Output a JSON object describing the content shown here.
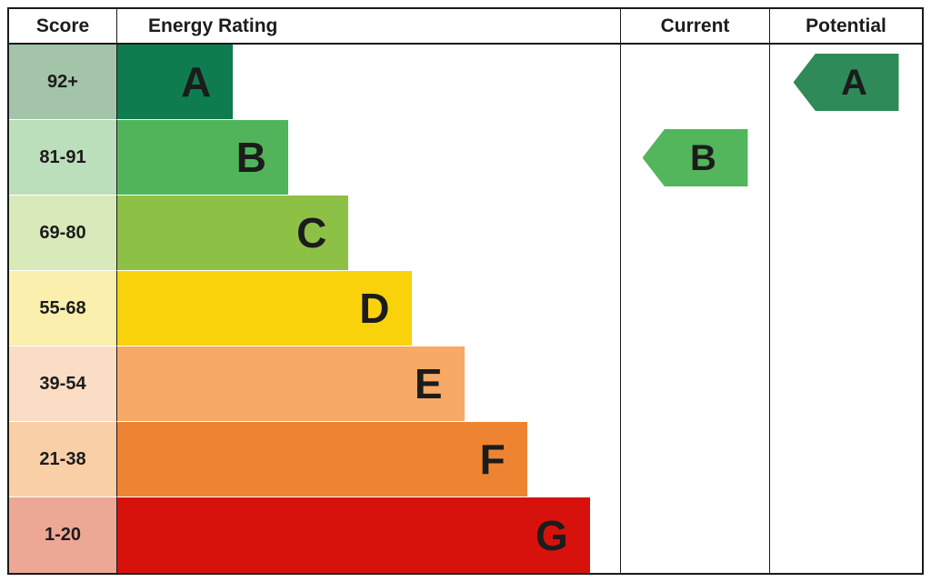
{
  "headers": {
    "score": "Score",
    "rating": "Energy Rating",
    "current": "Current",
    "potential": "Potential"
  },
  "colors": {
    "border": "#1a1a1a",
    "text": "#1c1c1c",
    "background": "#ffffff"
  },
  "chart_data": {
    "type": "bar",
    "title": "Energy Rating",
    "categories": [
      "A",
      "B",
      "C",
      "D",
      "E",
      "F",
      "G"
    ],
    "score_ranges": [
      "92+",
      "81-91",
      "69-80",
      "55-68",
      "39-54",
      "21-38",
      "1-20"
    ],
    "bar_lengths_pct": [
      23,
      34,
      46,
      58.5,
      69,
      81.5,
      94
    ],
    "bands": [
      {
        "letter": "A",
        "score_range": "92+",
        "bar_pct": 23,
        "band_color": "#0e7c4f",
        "score_tint": "#a4c4a9"
      },
      {
        "letter": "B",
        "score_range": "81-91",
        "bar_pct": 34,
        "band_color": "#51b45b",
        "score_tint": "#bcdfbb"
      },
      {
        "letter": "C",
        "score_range": "69-80",
        "bar_pct": 46,
        "band_color": "#8cc145",
        "score_tint": "#d8e9ba"
      },
      {
        "letter": "D",
        "score_range": "55-68",
        "bar_pct": 58.5,
        "band_color": "#fad20c",
        "score_tint": "#faefac"
      },
      {
        "letter": "E",
        "score_range": "39-54",
        "bar_pct": 69,
        "band_color": "#f7aa65",
        "score_tint": "#fbdcc4"
      },
      {
        "letter": "F",
        "score_range": "21-38",
        "bar_pct": 81.5,
        "band_color": "#ee8432",
        "score_tint": "#f9cfa8"
      },
      {
        "letter": "G",
        "score_range": "1-20",
        "bar_pct": 94,
        "band_color": "#d7120d",
        "score_tint": "#eda795"
      }
    ],
    "current": {
      "band": "B",
      "score_range": "81-91",
      "arrow_color": "#53b55c"
    },
    "potential": {
      "band": "A",
      "score_range": "92+",
      "arrow_color": "#2e8a58"
    }
  }
}
